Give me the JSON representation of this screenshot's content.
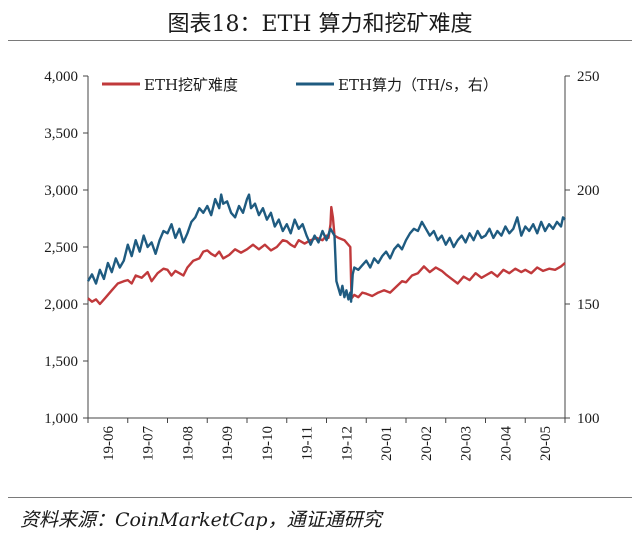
{
  "figure": {
    "title": "图表18：ETH 算力和挖矿难度",
    "source": "资料来源：CoinMarketCap，通证通研究"
  },
  "chart_data": {
    "type": "line",
    "x": [
      "19-06",
      "19-07",
      "19-08",
      "19-09",
      "19-10",
      "19-11",
      "19-12",
      "20-01",
      "20-02",
      "20-03",
      "20-04",
      "20-05"
    ],
    "x_tick_labels": [
      "19-06",
      "19-07",
      "19-08",
      "19-09",
      "19-10",
      "19-11",
      "19-12",
      "20-01",
      "20-02",
      "20-03",
      "20-04",
      "20-05"
    ],
    "y_left_ticks": [
      "1,000",
      "1,500",
      "2,000",
      "2,500",
      "3,000",
      "3,500",
      "4,000"
    ],
    "y_right_ticks": [
      "100",
      "150",
      "200",
      "250"
    ],
    "ylim_left": [
      1000,
      4000
    ],
    "ylim_right": [
      100,
      250
    ],
    "grid": false,
    "legend_position": "top",
    "series": [
      {
        "name": "ETH挖矿难度",
        "axis": "left",
        "color": "#c0393b",
        "points": [
          [
            0,
            2050
          ],
          [
            0.1,
            2020
          ],
          [
            0.2,
            2040
          ],
          [
            0.3,
            2000
          ],
          [
            0.45,
            2060
          ],
          [
            0.6,
            2120
          ],
          [
            0.75,
            2180
          ],
          [
            0.9,
            2200
          ],
          [
            1.0,
            2210
          ],
          [
            1.1,
            2180
          ],
          [
            1.2,
            2250
          ],
          [
            1.35,
            2230
          ],
          [
            1.5,
            2280
          ],
          [
            1.6,
            2200
          ],
          [
            1.75,
            2270
          ],
          [
            1.9,
            2310
          ],
          [
            2.0,
            2300
          ],
          [
            2.1,
            2250
          ],
          [
            2.2,
            2290
          ],
          [
            2.3,
            2270
          ],
          [
            2.4,
            2250
          ],
          [
            2.5,
            2320
          ],
          [
            2.65,
            2380
          ],
          [
            2.8,
            2400
          ],
          [
            2.9,
            2460
          ],
          [
            3.0,
            2470
          ],
          [
            3.1,
            2440
          ],
          [
            3.2,
            2420
          ],
          [
            3.3,
            2460
          ],
          [
            3.4,
            2400
          ],
          [
            3.55,
            2430
          ],
          [
            3.7,
            2480
          ],
          [
            3.85,
            2450
          ],
          [
            4.0,
            2480
          ],
          [
            4.15,
            2520
          ],
          [
            4.3,
            2480
          ],
          [
            4.45,
            2520
          ],
          [
            4.6,
            2470
          ],
          [
            4.75,
            2500
          ],
          [
            4.9,
            2560
          ],
          [
            5.0,
            2550
          ],
          [
            5.1,
            2520
          ],
          [
            5.2,
            2500
          ],
          [
            5.3,
            2560
          ],
          [
            5.45,
            2530
          ],
          [
            5.6,
            2560
          ],
          [
            5.75,
            2580
          ],
          [
            5.9,
            2560
          ],
          [
            6.0,
            2600
          ],
          [
            6.05,
            2580
          ],
          [
            6.1,
            2700
          ],
          [
            6.12,
            2850
          ],
          [
            6.16,
            2760
          ],
          [
            6.2,
            2600
          ],
          [
            6.3,
            2580
          ],
          [
            6.45,
            2560
          ],
          [
            6.6,
            2500
          ],
          [
            6.63,
            2050
          ],
          [
            6.7,
            2080
          ],
          [
            6.8,
            2060
          ],
          [
            6.9,
            2100
          ],
          [
            7.0,
            2090
          ],
          [
            7.15,
            2070
          ],
          [
            7.3,
            2100
          ],
          [
            7.45,
            2120
          ],
          [
            7.6,
            2100
          ],
          [
            7.75,
            2150
          ],
          [
            7.9,
            2200
          ],
          [
            8.0,
            2190
          ],
          [
            8.15,
            2250
          ],
          [
            8.3,
            2270
          ],
          [
            8.45,
            2330
          ],
          [
            8.6,
            2280
          ],
          [
            8.75,
            2320
          ],
          [
            8.9,
            2290
          ],
          [
            9.0,
            2260
          ],
          [
            9.15,
            2220
          ],
          [
            9.3,
            2180
          ],
          [
            9.45,
            2240
          ],
          [
            9.6,
            2210
          ],
          [
            9.75,
            2270
          ],
          [
            9.9,
            2230
          ],
          [
            10.0,
            2250
          ],
          [
            10.15,
            2280
          ],
          [
            10.3,
            2240
          ],
          [
            10.45,
            2300
          ],
          [
            10.6,
            2270
          ],
          [
            10.75,
            2310
          ],
          [
            10.9,
            2280
          ],
          [
            11.0,
            2300
          ],
          [
            11.15,
            2270
          ],
          [
            11.3,
            2320
          ],
          [
            11.45,
            2290
          ],
          [
            11.6,
            2310
          ],
          [
            11.75,
            2300
          ],
          [
            11.9,
            2330
          ],
          [
            12.0,
            2360
          ]
        ]
      },
      {
        "name": "ETH算力（TH/s，右）",
        "axis": "right",
        "color": "#1f5b80",
        "points": [
          [
            0,
            160
          ],
          [
            0.1,
            163
          ],
          [
            0.2,
            159
          ],
          [
            0.3,
            165
          ],
          [
            0.4,
            161
          ],
          [
            0.5,
            168
          ],
          [
            0.6,
            164
          ],
          [
            0.7,
            170
          ],
          [
            0.8,
            166
          ],
          [
            0.9,
            169
          ],
          [
            1.0,
            176
          ],
          [
            1.1,
            171
          ],
          [
            1.2,
            178
          ],
          [
            1.3,
            173
          ],
          [
            1.4,
            180
          ],
          [
            1.5,
            175
          ],
          [
            1.6,
            177
          ],
          [
            1.7,
            172
          ],
          [
            1.8,
            178
          ],
          [
            1.9,
            182
          ],
          [
            2.0,
            181
          ],
          [
            2.1,
            185
          ],
          [
            2.2,
            179
          ],
          [
            2.3,
            183
          ],
          [
            2.4,
            177
          ],
          [
            2.5,
            181
          ],
          [
            2.6,
            186
          ],
          [
            2.7,
            188
          ],
          [
            2.8,
            192
          ],
          [
            2.9,
            190
          ],
          [
            3.0,
            193
          ],
          [
            3.1,
            189
          ],
          [
            3.2,
            196
          ],
          [
            3.3,
            192
          ],
          [
            3.35,
            198
          ],
          [
            3.4,
            194
          ],
          [
            3.5,
            195
          ],
          [
            3.6,
            190
          ],
          [
            3.7,
            188
          ],
          [
            3.8,
            193
          ],
          [
            3.9,
            190
          ],
          [
            4.0,
            196
          ],
          [
            4.05,
            198
          ],
          [
            4.1,
            192
          ],
          [
            4.2,
            194
          ],
          [
            4.3,
            189
          ],
          [
            4.4,
            192
          ],
          [
            4.5,
            187
          ],
          [
            4.6,
            190
          ],
          [
            4.7,
            184
          ],
          [
            4.8,
            187
          ],
          [
            4.9,
            182
          ],
          [
            5.0,
            185
          ],
          [
            5.1,
            181
          ],
          [
            5.2,
            187
          ],
          [
            5.3,
            183
          ],
          [
            5.4,
            185
          ],
          [
            5.5,
            180
          ],
          [
            5.6,
            176
          ],
          [
            5.7,
            180
          ],
          [
            5.8,
            177
          ],
          [
            5.9,
            182
          ],
          [
            6.0,
            178
          ],
          [
            6.1,
            183
          ],
          [
            6.2,
            180
          ],
          [
            6.25,
            160
          ],
          [
            6.3,
            157
          ],
          [
            6.35,
            154
          ],
          [
            6.4,
            158
          ],
          [
            6.45,
            153
          ],
          [
            6.5,
            156
          ],
          [
            6.55,
            152
          ],
          [
            6.6,
            155
          ],
          [
            6.62,
            151
          ],
          [
            6.66,
            163
          ],
          [
            6.7,
            166
          ],
          [
            6.8,
            165
          ],
          [
            6.9,
            167
          ],
          [
            7.0,
            169
          ],
          [
            7.1,
            166
          ],
          [
            7.2,
            170
          ],
          [
            7.3,
            168
          ],
          [
            7.4,
            171
          ],
          [
            7.5,
            173
          ],
          [
            7.6,
            170
          ],
          [
            7.7,
            174
          ],
          [
            7.8,
            176
          ],
          [
            7.9,
            174
          ],
          [
            8.0,
            178
          ],
          [
            8.1,
            181
          ],
          [
            8.2,
            183
          ],
          [
            8.3,
            182
          ],
          [
            8.4,
            186
          ],
          [
            8.5,
            183
          ],
          [
            8.6,
            180
          ],
          [
            8.7,
            182
          ],
          [
            8.8,
            178
          ],
          [
            8.9,
            180
          ],
          [
            9.0,
            176
          ],
          [
            9.1,
            179
          ],
          [
            9.2,
            175
          ],
          [
            9.3,
            178
          ],
          [
            9.4,
            180
          ],
          [
            9.5,
            177
          ],
          [
            9.6,
            181
          ],
          [
            9.7,
            178
          ],
          [
            9.8,
            182
          ],
          [
            9.9,
            179
          ],
          [
            10.0,
            180
          ],
          [
            10.1,
            183
          ],
          [
            10.2,
            179
          ],
          [
            10.3,
            182
          ],
          [
            10.4,
            180
          ],
          [
            10.5,
            184
          ],
          [
            10.6,
            181
          ],
          [
            10.7,
            183
          ],
          [
            10.8,
            188
          ],
          [
            10.85,
            184
          ],
          [
            10.9,
            180
          ],
          [
            11.0,
            184
          ],
          [
            11.1,
            182
          ],
          [
            11.2,
            185
          ],
          [
            11.3,
            181
          ],
          [
            11.4,
            186
          ],
          [
            11.5,
            182
          ],
          [
            11.6,
            185
          ],
          [
            11.7,
            183
          ],
          [
            11.8,
            186
          ],
          [
            11.9,
            184
          ],
          [
            11.95,
            188
          ],
          [
            12.0,
            187
          ]
        ]
      }
    ]
  }
}
